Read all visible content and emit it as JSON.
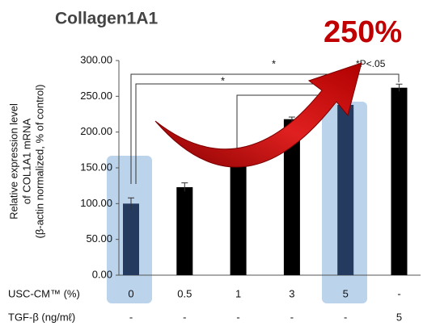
{
  "chart_data": {
    "type": "bar",
    "title": "Collagen1A1",
    "annotation": "250%",
    "significance_note": "*P<.05",
    "significance_marks": [
      "*",
      "*"
    ],
    "ylabel_lines": [
      "Relative expression level",
      "of COL1A1 mRNA",
      "(β-actin normalized, % of control)"
    ],
    "row_labels": [
      "USC-CM™ (%)",
      "TGF-β (ng/mℓ)"
    ],
    "categories": [
      "0",
      "0.5",
      "1",
      "3",
      "5",
      "-"
    ],
    "second_row": [
      "-",
      "-",
      "-",
      "-",
      "-",
      "5"
    ],
    "values": [
      100,
      123,
      156,
      218,
      238,
      262
    ],
    "errors": [
      8,
      6,
      4,
      3,
      5,
      5
    ],
    "colors": [
      "#243a5e",
      "#000000",
      "#000000",
      "#000000",
      "#243a5e",
      "#000000"
    ],
    "ylim": [
      0,
      300
    ],
    "yticks": [
      {
        "value": 0,
        "label": "0.00"
      },
      {
        "value": 50,
        "label": "50.00"
      },
      {
        "value": 100,
        "label": "100.00"
      },
      {
        "value": 150,
        "label": "150.00"
      },
      {
        "value": 200,
        "label": "200.00"
      },
      {
        "value": 250,
        "label": "250.00"
      },
      {
        "value": 300,
        "label": "300.00"
      }
    ]
  }
}
